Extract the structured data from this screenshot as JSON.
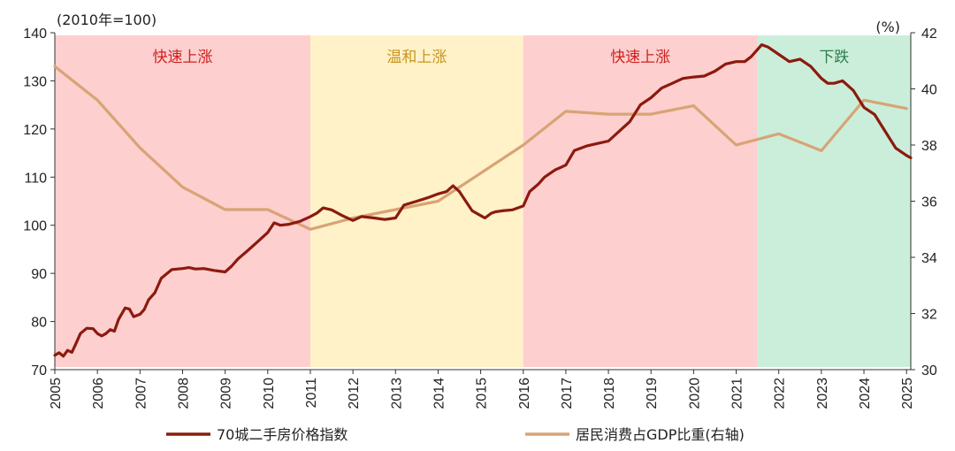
{
  "chart_data": {
    "type": "line",
    "left_axis_unit": "(2010年=100)",
    "right_axis_unit": "(%)",
    "ylim_left": [
      70,
      140
    ],
    "ylim_right": [
      30,
      42
    ],
    "xlim": [
      2005,
      2025.1
    ],
    "left_ticks": [
      70,
      80,
      90,
      100,
      110,
      120,
      130,
      140
    ],
    "right_ticks": [
      30,
      32,
      34,
      36,
      38,
      40,
      42
    ],
    "x_ticks": [
      "2005",
      "2006",
      "2007",
      "2008",
      "2009",
      "2010",
      "2011",
      "2012",
      "2013",
      "2014",
      "2015",
      "2016",
      "2017",
      "2018",
      "2019",
      "2020",
      "2021",
      "2022",
      "2023",
      "2024",
      "2025"
    ],
    "phases": [
      {
        "label": "快速上涨",
        "start": 2005,
        "end": 2011,
        "fill": "#fdcfcf",
        "text_color": "#d0201c"
      },
      {
        "label": "温和上涨",
        "start": 2011,
        "end": 2016,
        "fill": "#fff1c8",
        "text_color": "#c8961e"
      },
      {
        "label": "快速上涨",
        "start": 2016,
        "end": 2021.5,
        "fill": "#fdcfcf",
        "text_color": "#d0201c"
      },
      {
        "label": "下跌",
        "start": 2021.5,
        "end": 2025.1,
        "fill": "#cbeeda",
        "text_color": "#2e7d4f"
      }
    ],
    "series": [
      {
        "name": "70城二手房价格指数",
        "axis": "left",
        "color": "#8b1a0e",
        "x": [
          2005.0,
          2005.1,
          2005.2,
          2005.3,
          2005.4,
          2005.5,
          2005.6,
          2005.75,
          2005.9,
          2006.0,
          2006.1,
          2006.2,
          2006.3,
          2006.4,
          2006.5,
          2006.65,
          2006.75,
          2006.85,
          2007.0,
          2007.1,
          2007.2,
          2007.35,
          2007.5,
          2007.75,
          2008.0,
          2008.15,
          2008.3,
          2008.5,
          2008.75,
          2009.0,
          2009.15,
          2009.3,
          2009.5,
          2009.75,
          2010.0,
          2010.15,
          2010.3,
          2010.5,
          2010.75,
          2011.0,
          2011.15,
          2011.3,
          2011.5,
          2011.75,
          2012.0,
          2012.2,
          2012.5,
          2012.75,
          2013.0,
          2013.2,
          2013.5,
          2013.75,
          2014.0,
          2014.2,
          2014.35,
          2014.5,
          2014.65,
          2014.8,
          2015.0,
          2015.1,
          2015.25,
          2015.35,
          2015.5,
          2015.75,
          2016.0,
          2016.15,
          2016.35,
          2016.5,
          2016.75,
          2017.0,
          2017.2,
          2017.5,
          2017.75,
          2018.0,
          2018.25,
          2018.5,
          2018.75,
          2019.0,
          2019.25,
          2019.5,
          2019.75,
          2020.0,
          2020.25,
          2020.5,
          2020.75,
          2021.0,
          2021.2,
          2021.35,
          2021.5,
          2021.6,
          2021.75,
          2022.0,
          2022.25,
          2022.5,
          2022.75,
          2023.0,
          2023.15,
          2023.3,
          2023.5,
          2023.75,
          2024.0,
          2024.25,
          2024.5,
          2024.75,
          2025.0,
          2025.1
        ],
        "values": [
          73.0,
          73.5,
          72.8,
          74.0,
          73.6,
          75.5,
          77.5,
          78.6,
          78.5,
          77.5,
          77.0,
          77.5,
          78.3,
          78.0,
          80.5,
          82.8,
          82.6,
          81.0,
          81.5,
          82.5,
          84.5,
          86.0,
          89.0,
          90.8,
          91.0,
          91.2,
          90.9,
          91.0,
          90.6,
          90.3,
          91.5,
          93.0,
          94.5,
          96.5,
          98.5,
          100.5,
          100.0,
          100.2,
          100.8,
          101.8,
          102.5,
          103.6,
          103.2,
          102.0,
          101.0,
          101.8,
          101.5,
          101.2,
          101.5,
          104.2,
          105.0,
          105.7,
          106.5,
          107.0,
          108.2,
          107.0,
          105.0,
          103.0,
          102.0,
          101.5,
          102.5,
          102.8,
          103.0,
          103.2,
          104.0,
          107.0,
          108.5,
          110.0,
          111.5,
          112.5,
          115.5,
          116.5,
          117.0,
          117.5,
          119.5,
          121.5,
          125.0,
          126.5,
          128.5,
          129.5,
          130.5,
          130.8,
          131.0,
          132.0,
          133.5,
          134.0,
          134.0,
          135.0,
          136.5,
          137.5,
          137.0,
          135.5,
          134.0,
          134.5,
          133.0,
          130.5,
          129.5,
          129.5,
          130.0,
          128.0,
          124.5,
          123.0,
          119.5,
          116.0,
          114.5,
          114.0
        ],
        "stroke_width": 3.2
      },
      {
        "name": "居民消费占GDP比重(右轴)",
        "axis": "right",
        "color": "#d7a475",
        "x": [
          2005.0,
          2006.0,
          2007.0,
          2008.0,
          2009.0,
          2010.0,
          2011.0,
          2012.0,
          2013.0,
          2014.0,
          2015.0,
          2016.0,
          2017.0,
          2018.0,
          2019.0,
          2020.0,
          2021.0,
          2022.0,
          2023.0,
          2024.0,
          2025.0
        ],
        "values": [
          40.8,
          39.6,
          37.9,
          36.5,
          35.7,
          35.7,
          35.0,
          35.4,
          35.7,
          36.0,
          37.0,
          38.0,
          39.2,
          39.1,
          39.1,
          39.4,
          38.0,
          38.4,
          37.8,
          39.6,
          39.3
        ],
        "stroke_width": 3.2
      }
    ]
  }
}
